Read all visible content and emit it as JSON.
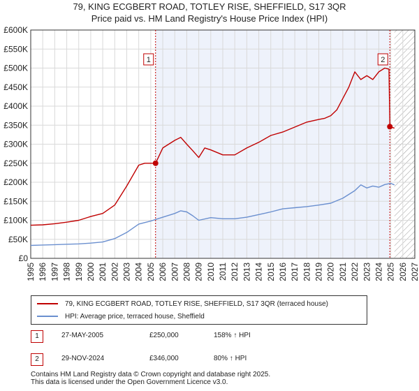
{
  "chart_data": {
    "type": "line",
    "title": "79, KING ECGBERT ROAD, TOTLEY RISE, SHEFFIELD, S17 3QR",
    "subtitle": "Price paid vs. HM Land Registry's House Price Index (HPI)",
    "xlim": [
      1995,
      2027
    ],
    "ylim": [
      0,
      600000
    ],
    "x_ticks": [
      1995,
      1996,
      1997,
      1998,
      1999,
      2000,
      2001,
      2002,
      2003,
      2004,
      2005,
      2006,
      2007,
      2008,
      2009,
      2010,
      2011,
      2012,
      2013,
      2014,
      2015,
      2016,
      2017,
      2018,
      2019,
      2020,
      2021,
      2022,
      2023,
      2024,
      2025,
      2026,
      2027
    ],
    "y_ticks": [
      {
        "value": 0,
        "label": "£0"
      },
      {
        "value": 50000,
        "label": "£50K"
      },
      {
        "value": 100000,
        "label": "£100K"
      },
      {
        "value": 150000,
        "label": "£150K"
      },
      {
        "value": 200000,
        "label": "£200K"
      },
      {
        "value": 250000,
        "label": "£250K"
      },
      {
        "value": 300000,
        "label": "£300K"
      },
      {
        "value": 350000,
        "label": "£350K"
      },
      {
        "value": 400000,
        "label": "£400K"
      },
      {
        "value": 450000,
        "label": "£450K"
      },
      {
        "value": 500000,
        "label": "£500K"
      },
      {
        "value": 550000,
        "label": "£550K"
      },
      {
        "value": 600000,
        "label": "£600K"
      }
    ],
    "grid": true,
    "shaded_region": [
      2005.4,
      2024.92
    ],
    "hatched_region": [
      2025.3,
      2027
    ],
    "series": [
      {
        "name": "79, KING ECGBERT ROAD, TOTLEY RISE, SHEFFIELD, S17 3QR (terraced house)",
        "color": "#c00000",
        "x": [
          1995,
          1996,
          1997,
          1998,
          1999,
          2000,
          2001,
          2002,
          2003,
          2004,
          2004.5,
          2005.4,
          2006,
          2007,
          2007.5,
          2008,
          2008.5,
          2009,
          2009.5,
          2010,
          2011,
          2012,
          2013,
          2014,
          2015,
          2016,
          2017,
          2018,
          2019,
          2019.5,
          2020,
          2020.5,
          2021,
          2021.5,
          2022,
          2022.5,
          2023,
          2023.5,
          2024,
          2024.5,
          2024.85,
          2024.92,
          2025.3
        ],
        "y": [
          87000,
          88000,
          91000,
          95000,
          100000,
          110000,
          118000,
          140000,
          190000,
          245000,
          250000,
          250000,
          290000,
          310000,
          318000,
          300000,
          283000,
          265000,
          290000,
          285000,
          272000,
          272000,
          290000,
          305000,
          323000,
          332000,
          345000,
          358000,
          365000,
          368000,
          375000,
          390000,
          420000,
          450000,
          490000,
          470000,
          480000,
          470000,
          490000,
          500000,
          497000,
          346000,
          342000
        ]
      },
      {
        "name": "HPI: Average price, terraced house, Sheffield",
        "color": "#6a8fcf",
        "x": [
          1995,
          1996,
          1997,
          1998,
          1999,
          2000,
          2001,
          2002,
          2003,
          2004,
          2005,
          2006,
          2007,
          2007.5,
          2008,
          2008.5,
          2009,
          2010,
          2011,
          2012,
          2013,
          2014,
          2015,
          2016,
          2017,
          2018,
          2019,
          2020,
          2021,
          2022,
          2022.5,
          2023,
          2023.5,
          2024,
          2024.5,
          2025,
          2025.3
        ],
        "y": [
          34000,
          35000,
          36000,
          37000,
          38000,
          40000,
          43000,
          52000,
          68000,
          90000,
          98000,
          108000,
          118000,
          125000,
          122000,
          112000,
          100000,
          107000,
          104000,
          104000,
          108000,
          115000,
          122000,
          130000,
          133000,
          136000,
          140000,
          145000,
          158000,
          178000,
          193000,
          185000,
          190000,
          187000,
          194000,
          197000,
          193000
        ]
      }
    ],
    "transactions": [
      {
        "label": "1",
        "date": "27-MAY-2005",
        "x": 2005.4,
        "price": 250000,
        "price_label": "£250,000",
        "hpi_label": "158% ↑ HPI"
      },
      {
        "label": "2",
        "date": "29-NOV-2024",
        "x": 2024.92,
        "price": 346000,
        "price_label": "£346,000",
        "hpi_label": "80% ↑ HPI"
      }
    ]
  },
  "legend": {
    "property_label": "79, KING ECGBERT ROAD, TOTLEY RISE, SHEFFIELD, S17 3QR (terraced house)",
    "hpi_label": "HPI: Average price, terraced house, Sheffield"
  },
  "footer": {
    "line1": "Contains HM Land Registry data © Crown copyright and database right 2025.",
    "line2": "This data is licensed under the Open Government Licence v3.0."
  },
  "colors": {
    "property": "#c00000",
    "hpi": "#6a8fcf",
    "grid": "#d9d9d9",
    "shade": "#eef2fb"
  }
}
